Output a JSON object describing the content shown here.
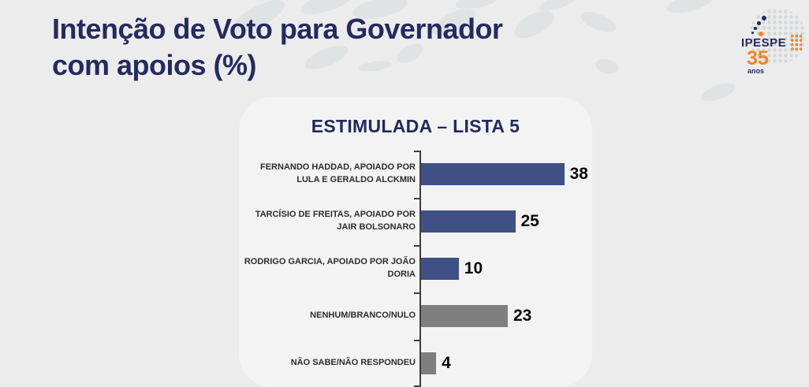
{
  "header": {
    "title_line1": "Intenção de Voto para Governador",
    "title_line2": "com apoios (%)"
  },
  "logo": {
    "brand": "IPESPE",
    "years": "35",
    "years_label": "anos"
  },
  "colors": {
    "title_navy": "#242B60",
    "chart_title_navy": "#1F2A5E",
    "bar_blue": "#3F5184",
    "bar_gray": "#7F7F7F",
    "logo_orange": "#F5821F",
    "axis": "#3F3F3F",
    "card_background": "#F3F3F4",
    "page_background": "#ECECEC"
  },
  "chart_data": {
    "type": "bar",
    "orientation": "horizontal",
    "title": "ESTIMULADA – LISTA 5",
    "categories": [
      "FERNANDO HADDAD, APOIADO POR LULA E GERALDO ALCKMIN",
      "TARCÍSIO DE FREITAS, APOIADO POR JAIR BOLSONARO",
      "RODRIGO GARCIA, APOIADO POR JOÃO DORIA",
      "NENHUM/BRANCO/NULO",
      "NÃO SABE/NÃO RESPONDEU"
    ],
    "values": [
      38,
      25,
      10,
      23,
      4
    ],
    "bar_colors": [
      "#3F5184",
      "#3F5184",
      "#3F5184",
      "#7F7F7F",
      "#7F7F7F"
    ],
    "value_labels_shown": true,
    "xlim": [
      0,
      45
    ],
    "grid": false,
    "legend": false
  }
}
